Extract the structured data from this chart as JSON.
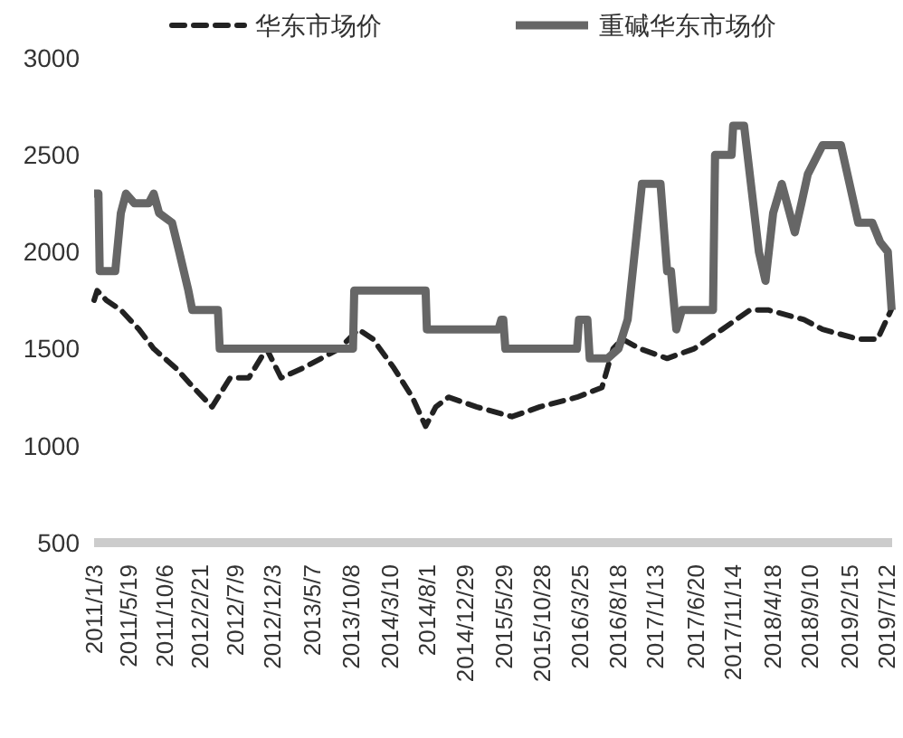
{
  "chart_data": {
    "type": "line",
    "legend": "top",
    "grid": false,
    "xlim": [
      "2011-01-03",
      "2019-08-01"
    ],
    "xticks": [
      {
        "value": "2011-01-03",
        "label": "2011/1/3"
      },
      {
        "value": "2011-05-19",
        "label": "2011/5/19"
      },
      {
        "value": "2011-10-06",
        "label": "2011/10/6"
      },
      {
        "value": "2012-02-21",
        "label": "2012/2/21"
      },
      {
        "value": "2012-07-09",
        "label": "2012/7/9"
      },
      {
        "value": "2012-12-03",
        "label": "2012/12/3"
      },
      {
        "value": "2013-05-07",
        "label": "2013/5/7"
      },
      {
        "value": "2013-10-08",
        "label": "2013/10/8"
      },
      {
        "value": "2014-03-10",
        "label": "2014/3/10"
      },
      {
        "value": "2014-08-01",
        "label": "2014/8/1"
      },
      {
        "value": "2014-12-29",
        "label": "2014/12/29"
      },
      {
        "value": "2015-05-29",
        "label": "2015/5/29"
      },
      {
        "value": "2015-10-28",
        "label": "2015/10/28"
      },
      {
        "value": "2016-03-25",
        "label": "2016/3/25"
      },
      {
        "value": "2016-08-18",
        "label": "2016/8/18"
      },
      {
        "value": "2017-01-13",
        "label": "2017/1/13"
      },
      {
        "value": "2017-06-20",
        "label": "2017/6/20"
      },
      {
        "value": "2017-11-14",
        "label": "2017/11/14"
      },
      {
        "value": "2018-04-18",
        "label": "2018/4/18"
      },
      {
        "value": "2018-09-10",
        "label": "2018/9/10"
      },
      {
        "value": "2019-02-15",
        "label": "2019/2/15"
      },
      {
        "value": "2019-07-12",
        "label": "2019/7/12"
      }
    ],
    "ylim": [
      500,
      3000
    ],
    "yticks": [
      500,
      1000,
      1500,
      2000,
      2500,
      3000
    ],
    "series": [
      {
        "name": "华东市场价",
        "color": "#222222",
        "line_style": "dashed",
        "x": [
          "2011-01-03",
          "2011-01-15",
          "2011-02-20",
          "2011-04-18",
          "2011-06-28",
          "2011-08-25",
          "2011-11-20",
          "2012-01-28",
          "2012-04-10",
          "2012-06-20",
          "2012-09-01",
          "2012-11-10",
          "2013-01-06",
          "2013-04-01",
          "2013-06-12",
          "2013-08-22",
          "2013-11-05",
          "2014-01-01",
          "2014-03-25",
          "2014-06-05",
          "2014-07-27",
          "2014-09-05",
          "2014-10-25",
          "2015-02-12",
          "2015-07-01",
          "2015-10-18",
          "2016-03-12",
          "2016-06-18",
          "2016-08-01",
          "2016-09-05",
          "2016-11-15",
          "2017-03-01",
          "2017-06-15",
          "2017-10-03",
          "2018-01-20",
          "2018-04-01",
          "2018-08-20",
          "2018-11-01",
          "2019-03-20",
          "2019-06-05",
          "2019-07-28"
        ],
        "values": [
          1750,
          1800,
          1750,
          1700,
          1600,
          1500,
          1400,
          1300,
          1200,
          1350,
          1350,
          1500,
          1350,
          1400,
          1450,
          1500,
          1600,
          1550,
          1400,
          1250,
          1100,
          1200,
          1250,
          1200,
          1150,
          1200,
          1250,
          1300,
          1500,
          1550,
          1500,
          1450,
          1500,
          1600,
          1700,
          1700,
          1650,
          1600,
          1550,
          1550,
          1700
        ]
      },
      {
        "name": "重碱华东市场价",
        "color": "#666666",
        "line_style": "solid",
        "x": [
          "2011-01-03",
          "2011-01-20",
          "2011-01-25",
          "2011-03-27",
          "2011-04-18",
          "2011-05-08",
          "2011-06-10",
          "2011-08-05",
          "2011-08-25",
          "2011-09-15",
          "2011-11-05",
          "2011-12-03",
          "2012-01-08",
          "2012-01-23",
          "2012-05-03",
          "2012-05-10",
          "2013-10-15",
          "2013-10-20",
          "2014-07-27",
          "2014-08-01",
          "2015-05-09",
          "2015-05-20",
          "2015-05-28",
          "2015-06-05",
          "2016-03-12",
          "2016-03-20",
          "2016-04-22",
          "2016-05-01",
          "2016-07-10",
          "2016-08-22",
          "2016-09-27",
          "2016-10-25",
          "2016-11-22",
          "2017-02-03",
          "2017-03-01",
          "2017-03-16",
          "2017-04-06",
          "2017-04-28",
          "2017-08-28",
          "2017-09-05",
          "2017-11-09",
          "2017-11-15",
          "2017-12-28",
          "2018-02-24",
          "2018-03-22",
          "2018-04-21",
          "2018-05-25",
          "2018-07-15",
          "2018-08-10",
          "2018-09-04",
          "2018-11-01",
          "2019-01-12",
          "2019-02-15",
          "2019-03-21",
          "2019-05-15",
          "2019-06-15",
          "2019-07-15",
          "2019-07-30"
        ],
        "values": [
          2300,
          2300,
          1900,
          1900,
          2200,
          2300,
          2250,
          2250,
          2300,
          2200,
          2150,
          2000,
          1800,
          1700,
          1700,
          1500,
          1500,
          1800,
          1800,
          1600,
          1600,
          1650,
          1650,
          1500,
          1500,
          1650,
          1650,
          1450,
          1450,
          1500,
          1650,
          2000,
          2350,
          2350,
          1900,
          1900,
          1600,
          1700,
          1700,
          2500,
          2500,
          2650,
          2650,
          2000,
          1850,
          2200,
          2350,
          2100,
          2250,
          2400,
          2550,
          2550,
          2350,
          2150,
          2150,
          2050,
          2000,
          1700
        ]
      }
    ]
  }
}
